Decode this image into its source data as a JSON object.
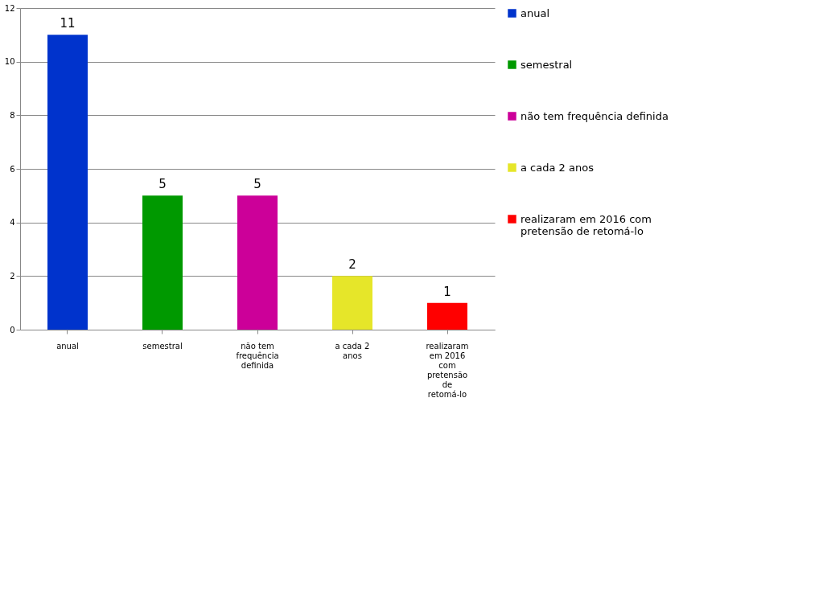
{
  "chart_data": {
    "type": "bar",
    "categories": [
      "anual",
      "semestral",
      "não tem frequência definida",
      "a cada 2 anos",
      "realizaram em 2016 com pretensão de retomá-lo"
    ],
    "series": [
      {
        "name": "anual",
        "color": "#0033cc",
        "values": [
          11,
          null,
          null,
          null,
          null
        ]
      },
      {
        "name": "semestral",
        "color": "#009900",
        "values": [
          null,
          5,
          null,
          null,
          null
        ]
      },
      {
        "name": "não tem frequência definida",
        "color": "#cc0099",
        "values": [
          null,
          null,
          5,
          null,
          null
        ]
      },
      {
        "name": "a cada 2 anos",
        "color": "#e6e629",
        "values": [
          null,
          null,
          null,
          2,
          null
        ]
      },
      {
        "name": "realizaram em 2016 com pretensão de retomá-lo",
        "color": "#ff0000",
        "values": [
          null,
          null,
          null,
          null,
          1
        ]
      }
    ],
    "ylim": [
      0,
      12
    ],
    "yticks": [
      0,
      2,
      4,
      6,
      8,
      10,
      12
    ],
    "grid": "y",
    "legend": "right",
    "data_labels": true
  }
}
